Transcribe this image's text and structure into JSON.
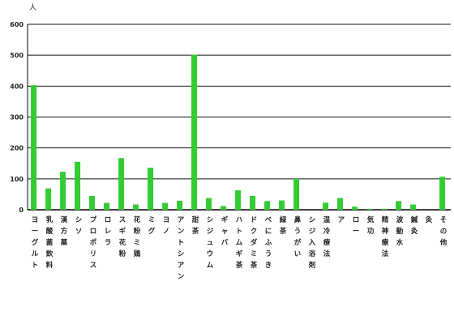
{
  "chart_data": {
    "type": "bar",
    "title": "",
    "xlabel": "",
    "ylabel": "人",
    "ylim": [
      0,
      600
    ],
    "yticks": [
      0,
      100,
      200,
      300,
      400,
      500,
      600
    ],
    "grid": true,
    "legend": "none",
    "bar_color": "#33cc33",
    "categories": [
      "ヨーグルト",
      "乳酸菌飲料",
      "漢方薬",
      "シソ",
      "プロポリス",
      "ロレラ",
      "スギ花粉",
      "花粉ミ鶏",
      "ミグ",
      "ヨノ",
      "アントシアン",
      "甜茶",
      "シジュウム",
      "ギャバ",
      "ハトムギ茶",
      "ドクダミ茶",
      "べにふうき",
      "緑茶",
      "鼻うがい",
      "シジ入浴剤",
      "温冷療法",
      "ア",
      "ロー",
      "気功",
      "精神療法",
      "波動水",
      "鍼灸",
      "灸",
      "その他"
    ],
    "values": [
      403,
      69,
      123,
      155,
      45,
      22,
      167,
      17,
      136,
      22,
      29,
      502,
      38,
      12,
      63,
      45,
      28,
      30,
      100,
      0,
      23,
      38,
      10,
      3,
      3,
      28,
      17,
      0,
      107
    ]
  }
}
